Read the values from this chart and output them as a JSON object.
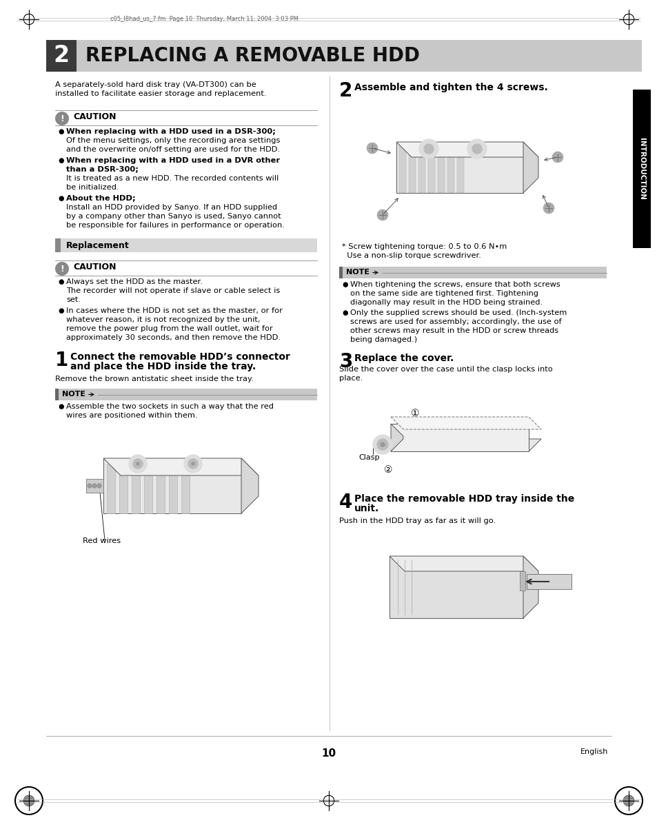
{
  "page_bg": "#ffffff",
  "header_bg": "#c8c8c8",
  "header_dark_box_bg": "#3a3a3a",
  "header_number": "2",
  "header_title": "REPLACING A REMOVABLE HDD",
  "intro_text_line1": "A separately-sold hard disk tray (VA-DT300) can be",
  "intro_text_line2": "installed to facilitate easier storage and replacement.",
  "caution_icon_color": "#888888",
  "caution_title": "CAUTION",
  "caution_items": [
    {
      "bold": "When replacing with a HDD used in a DSR-300;",
      "normal": [
        "Of the menu settings, only the recording area settings",
        "and the overwrite on/off setting are used for the HDD."
      ]
    },
    {
      "bold": "When replacing with a HDD used in a DVR other",
      "bold2": "than a DSR-300;",
      "normal": [
        "It is treated as a new HDD. The recorded contents will",
        "be initialized."
      ]
    },
    {
      "bold": "About the HDD;",
      "normal": [
        "Install an HDD provided by Sanyo. If an HDD supplied",
        "by a company other than Sanyo is used, Sanyo cannot",
        "be responsible for failures in performance or operation."
      ]
    }
  ],
  "replacement_section_title": "Replacement",
  "replacement_section_bg": "#d8d8d8",
  "replacement_section_accent": "#888888",
  "caution2_items": [
    {
      "normal": [
        "Always set the HDD as the master.",
        "The recorder will not operate if slave or cable select is",
        "set."
      ]
    },
    {
      "normal": [
        "In cases where the HDD is not set as the master, or for",
        "whatever reason, it is not recognized by the unit,",
        "remove the power plug from the wall outlet, wait for",
        "approximately 30 seconds, and then remove the HDD."
      ]
    }
  ],
  "step1_number": "1",
  "step1_title1": "Connect the removable HDD’s connector",
  "step1_title2": "and place the HDD inside the tray.",
  "step1_body": "Remove the brown antistatic sheet inside the tray.",
  "note1_title": "NOTE",
  "note1_text": [
    "Assemble the two sockets in such a way that the red",
    "wires are positioned within them."
  ],
  "red_wires_label": "Red wires",
  "step2_number": "2",
  "step2_title": "Assemble and tighten the 4 screws.",
  "screw_note_line1": "* Screw tightening torque: 0.5 to 0.6 N•m",
  "screw_note_line2": "  Use a non-slip torque screwdriver.",
  "note2_title": "NOTE",
  "note2_items": [
    [
      "When tightening the screws, ensure that both screws",
      "on the same side are tightened first. Tightening",
      "diagonally may result in the HDD being strained."
    ],
    [
      "Only the supplied screws should be used. (Inch-system",
      "screws are used for assembly; accordingly, the use of",
      "other screws may result in the HDD or screw threads",
      "being damaged.)"
    ]
  ],
  "step3_number": "3",
  "step3_title": "Replace the cover.",
  "step3_body1": "Slide the cover over the case until the clasp locks into",
  "step3_body2": "place.",
  "clasp_label": "Clasp",
  "step4_number": "4",
  "step4_title1": "Place the removable HDD tray inside the",
  "step4_title2": "unit.",
  "step4_body": "Push in the HDD tray as far as it will go.",
  "page_number": "10",
  "language": "English",
  "sidebar_text": "INTRODUCTION",
  "sidebar_bg": "#000000",
  "top_note_text": "c05_l8had_us_7.fm  Page 10  Thursday, March 11, 2004  3:03 PM",
  "text_color": "#000000",
  "note_bg": "#c8c8c8",
  "note_bar_color": "#666666",
  "line_color": "#888888"
}
